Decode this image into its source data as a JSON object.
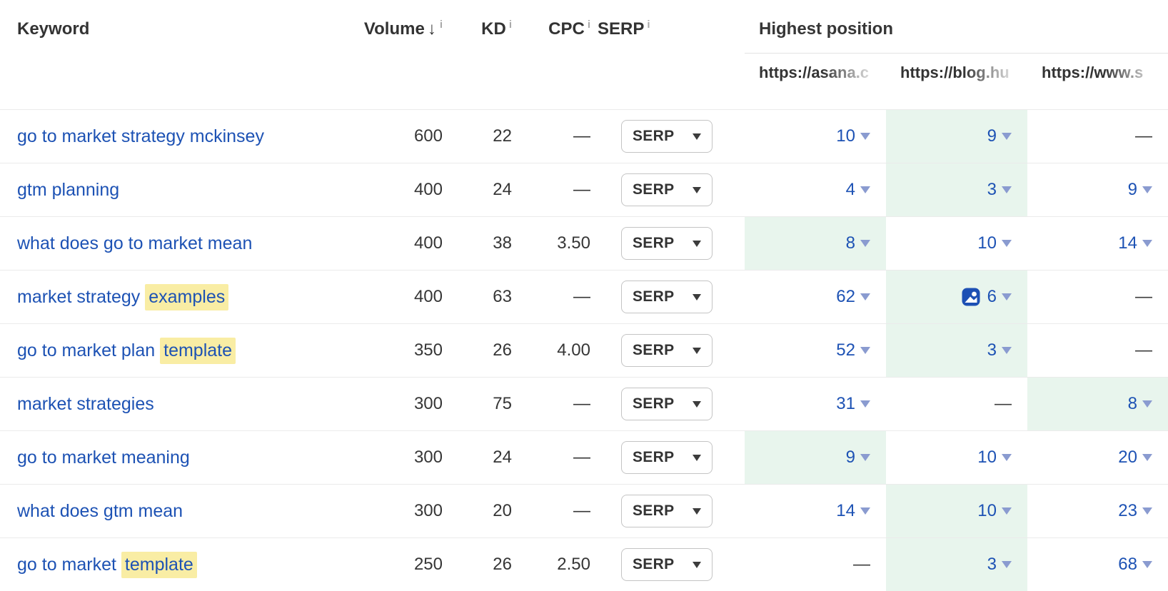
{
  "header": {
    "keyword_label": "Keyword",
    "volume_label": "Volume",
    "sort_arrow": "↓",
    "kd_label": "KD",
    "cpc_label": "CPC",
    "serp_label": "SERP",
    "info_icon": "i",
    "highest_position_label": "Highest position",
    "url_columns": [
      {
        "label": "https://asana.c"
      },
      {
        "label": "https://blog.hu"
      },
      {
        "label": "https://www.s"
      }
    ]
  },
  "serp_button_label": "SERP",
  "dash": "—",
  "rows": [
    {
      "keyword_parts": [
        {
          "text": "go to market strategy mckinsey",
          "highlight": false
        }
      ],
      "volume": "600",
      "kd": "22",
      "cpc": "—",
      "positions": [
        {
          "value": "10",
          "green": false,
          "image_icon": false
        },
        {
          "value": "9",
          "green": true,
          "image_icon": false
        },
        {
          "value": "—",
          "green": false,
          "image_icon": false
        }
      ]
    },
    {
      "keyword_parts": [
        {
          "text": "gtm planning",
          "highlight": false
        }
      ],
      "volume": "400",
      "kd": "24",
      "cpc": "—",
      "positions": [
        {
          "value": "4",
          "green": false,
          "image_icon": false
        },
        {
          "value": "3",
          "green": true,
          "image_icon": false
        },
        {
          "value": "9",
          "green": false,
          "image_icon": false
        }
      ]
    },
    {
      "keyword_parts": [
        {
          "text": "what does go to market mean",
          "highlight": false
        }
      ],
      "volume": "400",
      "kd": "38",
      "cpc": "3.50",
      "positions": [
        {
          "value": "8",
          "green": true,
          "image_icon": false
        },
        {
          "value": "10",
          "green": false,
          "image_icon": false
        },
        {
          "value": "14",
          "green": false,
          "image_icon": false
        }
      ]
    },
    {
      "keyword_parts": [
        {
          "text": "market strategy ",
          "highlight": false
        },
        {
          "text": "examples",
          "highlight": true
        }
      ],
      "volume": "400",
      "kd": "63",
      "cpc": "—",
      "positions": [
        {
          "value": "62",
          "green": false,
          "image_icon": false
        },
        {
          "value": "6",
          "green": true,
          "image_icon": true
        },
        {
          "value": "—",
          "green": false,
          "image_icon": false
        }
      ]
    },
    {
      "keyword_parts": [
        {
          "text": "go to market plan ",
          "highlight": false
        },
        {
          "text": "template",
          "highlight": true
        }
      ],
      "volume": "350",
      "kd": "26",
      "cpc": "4.00",
      "positions": [
        {
          "value": "52",
          "green": false,
          "image_icon": false
        },
        {
          "value": "3",
          "green": true,
          "image_icon": false
        },
        {
          "value": "—",
          "green": false,
          "image_icon": false
        }
      ]
    },
    {
      "keyword_parts": [
        {
          "text": "market strategies",
          "highlight": false
        }
      ],
      "volume": "300",
      "kd": "75",
      "cpc": "—",
      "positions": [
        {
          "value": "31",
          "green": false,
          "image_icon": false
        },
        {
          "value": "—",
          "green": false,
          "image_icon": false
        },
        {
          "value": "8",
          "green": true,
          "image_icon": false
        }
      ]
    },
    {
      "keyword_parts": [
        {
          "text": "go to market meaning",
          "highlight": false
        }
      ],
      "volume": "300",
      "kd": "24",
      "cpc": "—",
      "positions": [
        {
          "value": "9",
          "green": true,
          "image_icon": false
        },
        {
          "value": "10",
          "green": false,
          "image_icon": false
        },
        {
          "value": "20",
          "green": false,
          "image_icon": false
        }
      ]
    },
    {
      "keyword_parts": [
        {
          "text": "what does gtm mean",
          "highlight": false
        }
      ],
      "volume": "300",
      "kd": "20",
      "cpc": "—",
      "positions": [
        {
          "value": "14",
          "green": false,
          "image_icon": false
        },
        {
          "value": "10",
          "green": true,
          "image_icon": false
        },
        {
          "value": "23",
          "green": false,
          "image_icon": false
        }
      ]
    },
    {
      "keyword_parts": [
        {
          "text": "go to market ",
          "highlight": false
        },
        {
          "text": "template",
          "highlight": true
        }
      ],
      "volume": "250",
      "kd": "26",
      "cpc": "2.50",
      "positions": [
        {
          "value": "—",
          "green": false,
          "image_icon": false
        },
        {
          "value": "3",
          "green": true,
          "image_icon": false
        },
        {
          "value": "68",
          "green": false,
          "image_icon": false
        }
      ]
    }
  ],
  "colors": {
    "link_blue": "#1d52b4",
    "green_highlight": "#e8f5ed",
    "yellow_highlight": "#f9eda4",
    "text_dark": "#363636",
    "triangle_blue": "#8a9bd0",
    "separator": "#ebebeb"
  }
}
